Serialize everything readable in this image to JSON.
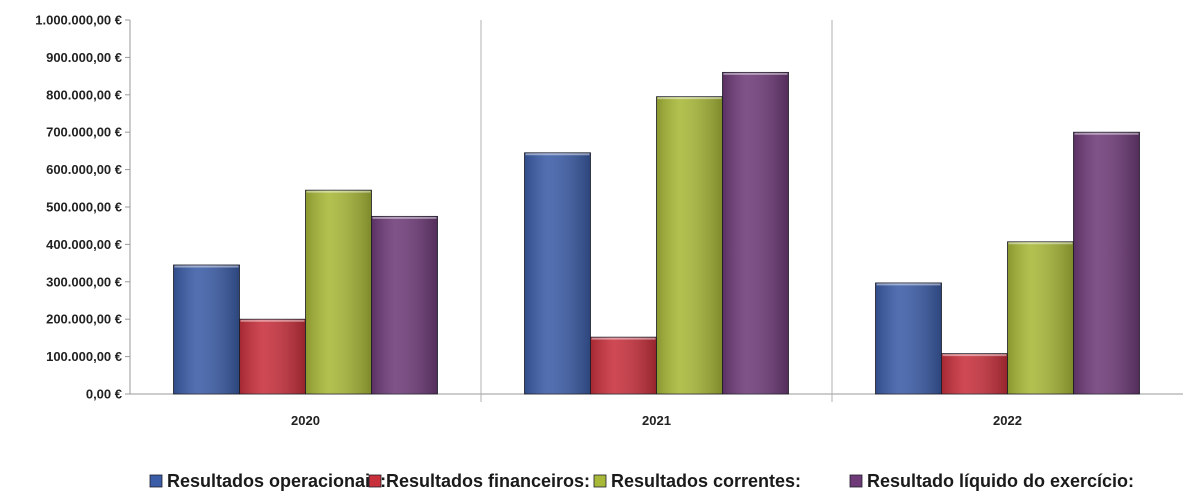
{
  "chart_data": {
    "type": "bar",
    "categories": [
      "2020",
      "2021",
      "2022"
    ],
    "series": [
      {
        "name": "Resultados operacionais:",
        "values": [
          345000,
          645000,
          297000
        ],
        "color": "#3b5ca6"
      },
      {
        "name": "Resultados financeiros:",
        "values": [
          200000,
          152000,
          108000
        ],
        "color": "#c8303c"
      },
      {
        "name": "Resultados correntes:",
        "values": [
          545000,
          795000,
          407000
        ],
        "color": "#a8b838"
      },
      {
        "name": "Resultado líquido do exercício:",
        "values": [
          475000,
          860000,
          700000
        ],
        "color": "#6e3b78"
      }
    ],
    "ylim": [
      0,
      1000000
    ],
    "yticks": [
      0,
      100000,
      200000,
      300000,
      400000,
      500000,
      600000,
      700000,
      800000,
      900000,
      1000000
    ],
    "ytick_labels": [
      "0,00 €",
      "100.000,00 €",
      "200.000,00 €",
      "300.000,00 €",
      "400.000,00 €",
      "500.000,00 €",
      "600.000,00 €",
      "700.000,00 €",
      "800.000,00 €",
      "900.000,00 €",
      "1.000.000,00 €"
    ],
    "title": "",
    "xlabel": "",
    "ylabel": "",
    "legend_position": "bottom",
    "grid": false
  }
}
